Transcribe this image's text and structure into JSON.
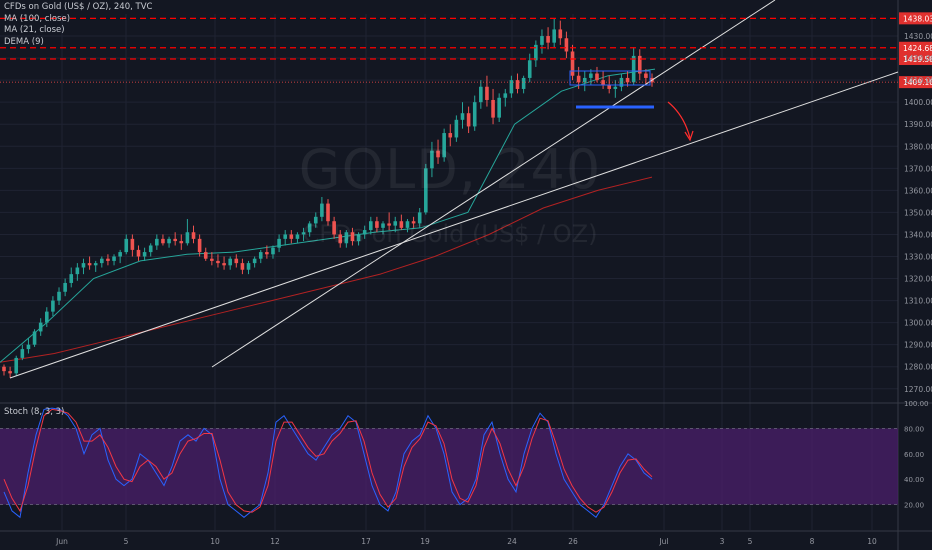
{
  "legend": {
    "title": "CFDs on Gold (US$ / OZ), 240, TVC",
    "ma100": "MA (100, close)",
    "ma21": "MA (21, close)",
    "dema": "DEMA (9)"
  },
  "watermark": {
    "symbol": "GOLD, 240",
    "name": "CFDs on Gold (US$ / OZ)"
  },
  "stoch_label": "Stoch (8, 3, 3)",
  "colors": {
    "background": "#131722",
    "up": "#26a69a",
    "down": "#ef5350",
    "resistance": "#ff0000",
    "stoch_k": "#2962ff",
    "stoch_d": "#f23645",
    "stoch_band": "#4b1f6b",
    "ma100": "#b22222",
    "ma21": "#26a69a"
  },
  "chart_data": [
    {
      "type": "candlestick",
      "price_axis": {
        "ticks": [
          "1430.00",
          "1420.00",
          "1410.00",
          "1400.00",
          "1390.00",
          "1380.00",
          "1370.00",
          "1360.00",
          "1350.00",
          "1340.00",
          "1330.00",
          "1320.00",
          "1310.00",
          "1300.00",
          "1290.00",
          "1280.00",
          "1270.00"
        ],
        "range": [
          1264,
          1440
        ]
      },
      "time_axis": {
        "ticks": [
          "Jun",
          "5",
          "10",
          "12",
          "17",
          "19",
          "24",
          "26",
          "Jul",
          "3",
          "5",
          "8",
          "10"
        ]
      },
      "price_labels": [
        {
          "value": "1438.03",
          "style": "resistance"
        },
        {
          "value": "1424.68",
          "style": "resistance"
        },
        {
          "value": "1419.58",
          "style": "resistance"
        },
        {
          "value": "1409.10",
          "style": "last"
        }
      ],
      "ohlc": [
        [
          1280,
          1281,
          1276,
          1278
        ],
        [
          1278,
          1280,
          1275,
          1277
        ],
        [
          1277,
          1285,
          1276,
          1284
        ],
        [
          1284,
          1290,
          1283,
          1288
        ],
        [
          1288,
          1293,
          1286,
          1290
        ],
        [
          1290,
          1297,
          1289,
          1296
        ],
        [
          1296,
          1302,
          1294,
          1300
        ],
        [
          1300,
          1307,
          1298,
          1305
        ],
        [
          1305,
          1312,
          1303,
          1310
        ],
        [
          1310,
          1316,
          1308,
          1314
        ],
        [
          1314,
          1320,
          1312,
          1318
        ],
        [
          1318,
          1325,
          1316,
          1322
        ],
        [
          1322,
          1327,
          1319,
          1325
        ],
        [
          1325,
          1329,
          1322,
          1327
        ],
        [
          1327,
          1330,
          1324,
          1326
        ],
        [
          1326,
          1328,
          1323,
          1327
        ],
        [
          1327,
          1330,
          1325,
          1329
        ],
        [
          1329,
          1331,
          1326,
          1328
        ],
        [
          1328,
          1331,
          1326,
          1330
        ],
        [
          1330,
          1333,
          1327,
          1332
        ],
        [
          1332,
          1340,
          1331,
          1338
        ],
        [
          1338,
          1340,
          1330,
          1333
        ],
        [
          1333,
          1335,
          1328,
          1330
        ],
        [
          1330,
          1334,
          1328,
          1332
        ],
        [
          1332,
          1336,
          1330,
          1335
        ],
        [
          1335,
          1340,
          1333,
          1338
        ],
        [
          1338,
          1340,
          1335,
          1336
        ],
        [
          1336,
          1339,
          1334,
          1338
        ],
        [
          1338,
          1341,
          1335,
          1337
        ],
        [
          1337,
          1340,
          1333,
          1336
        ],
        [
          1336,
          1347,
          1335,
          1341
        ],
        [
          1341,
          1344,
          1336,
          1338
        ],
        [
          1338,
          1340,
          1330,
          1332
        ],
        [
          1332,
          1334,
          1328,
          1329
        ],
        [
          1329,
          1332,
          1326,
          1328
        ],
        [
          1328,
          1331,
          1325,
          1327
        ],
        [
          1327,
          1330,
          1324,
          1326
        ],
        [
          1326,
          1330,
          1324,
          1329
        ],
        [
          1329,
          1331,
          1325,
          1327
        ],
        [
          1327,
          1329,
          1322,
          1324
        ],
        [
          1324,
          1328,
          1322,
          1327
        ],
        [
          1327,
          1330,
          1325,
          1329
        ],
        [
          1329,
          1333,
          1327,
          1332
        ],
        [
          1332,
          1335,
          1329,
          1331
        ],
        [
          1331,
          1335,
          1329,
          1334
        ],
        [
          1334,
          1340,
          1332,
          1338
        ],
        [
          1338,
          1342,
          1335,
          1340
        ],
        [
          1340,
          1342,
          1336,
          1338
        ],
        [
          1338,
          1341,
          1336,
          1340
        ],
        [
          1340,
          1343,
          1337,
          1341
        ],
        [
          1341,
          1346,
          1339,
          1345
        ],
        [
          1345,
          1350,
          1343,
          1348
        ],
        [
          1348,
          1357,
          1346,
          1354
        ],
        [
          1354,
          1356,
          1344,
          1346
        ],
        [
          1346,
          1348,
          1338,
          1340
        ],
        [
          1340,
          1342,
          1334,
          1336
        ],
        [
          1336,
          1342,
          1334,
          1341
        ],
        [
          1341,
          1343,
          1335,
          1337
        ],
        [
          1337,
          1341,
          1335,
          1340
        ],
        [
          1340,
          1344,
          1338,
          1342
        ],
        [
          1342,
          1348,
          1340,
          1346
        ],
        [
          1346,
          1348,
          1341,
          1343
        ],
        [
          1343,
          1346,
          1340,
          1345
        ],
        [
          1345,
          1350,
          1342,
          1344
        ],
        [
          1344,
          1348,
          1341,
          1346
        ],
        [
          1346,
          1349,
          1342,
          1343
        ],
        [
          1343,
          1347,
          1341,
          1346
        ],
        [
          1346,
          1348,
          1343,
          1345
        ],
        [
          1345,
          1352,
          1343,
          1350
        ],
        [
          1350,
          1372,
          1349,
          1370
        ],
        [
          1370,
          1382,
          1366,
          1378
        ],
        [
          1378,
          1383,
          1372,
          1375
        ],
        [
          1375,
          1388,
          1373,
          1386
        ],
        [
          1386,
          1390,
          1380,
          1384
        ],
        [
          1384,
          1394,
          1382,
          1392
        ],
        [
          1392,
          1400,
          1388,
          1395
        ],
        [
          1395,
          1398,
          1386,
          1389
        ],
        [
          1389,
          1403,
          1387,
          1400
        ],
        [
          1400,
          1410,
          1397,
          1407
        ],
        [
          1407,
          1412,
          1398,
          1401
        ],
        [
          1401,
          1406,
          1390,
          1393
        ],
        [
          1393,
          1404,
          1391,
          1402
        ],
        [
          1402,
          1406,
          1398,
          1404
        ],
        [
          1404,
          1412,
          1402,
          1410
        ],
        [
          1410,
          1413,
          1404,
          1406
        ],
        [
          1406,
          1412,
          1404,
          1411
        ],
        [
          1411,
          1422,
          1409,
          1419
        ],
        [
          1419,
          1428,
          1416,
          1426
        ],
        [
          1426,
          1433,
          1422,
          1430
        ],
        [
          1430,
          1434,
          1424,
          1427
        ],
        [
          1427,
          1438,
          1425,
          1433
        ],
        [
          1433,
          1437,
          1426,
          1429
        ],
        [
          1429,
          1432,
          1420,
          1423
        ],
        [
          1423,
          1426,
          1410,
          1412
        ],
        [
          1412,
          1416,
          1406,
          1409
        ],
        [
          1409,
          1414,
          1405,
          1411
        ],
        [
          1411,
          1415,
          1408,
          1413
        ],
        [
          1413,
          1416,
          1409,
          1410
        ],
        [
          1410,
          1414,
          1406,
          1408
        ],
        [
          1408,
          1412,
          1404,
          1406
        ],
        [
          1406,
          1410,
          1402,
          1407
        ],
        [
          1407,
          1413,
          1405,
          1411
        ],
        [
          1411,
          1414,
          1407,
          1409
        ],
        [
          1409,
          1425,
          1408,
          1421
        ],
        [
          1421,
          1424,
          1410,
          1413
        ],
        [
          1413,
          1415,
          1408,
          1411
        ],
        [
          1411,
          1413,
          1407,
          1409
        ]
      ],
      "overlay_lines": {
        "ma100": [
          1282,
          1286,
          1292,
          1298,
          1304,
          1310,
          1316,
          1322,
          1330,
          1340,
          1352,
          1360,
          1366
        ],
        "ma21": [
          1282,
          1300,
          1320,
          1328,
          1331,
          1332,
          1335,
          1338,
          1341,
          1343,
          1350,
          1390,
          1405,
          1412,
          1415
        ]
      }
    },
    {
      "type": "line",
      "title": "Stoch (8, 3, 3)",
      "y_ticks": [
        "100.00",
        "80.00",
        "60.00",
        "40.00",
        "20.00"
      ],
      "ylim": [
        0,
        100
      ],
      "band": [
        20,
        80
      ],
      "series": [
        {
          "values": [
            30,
            15,
            10,
            45,
            75,
            95,
            96,
            95,
            90,
            80,
            60,
            75,
            80,
            55,
            40,
            35,
            40,
            60,
            55,
            45,
            35,
            50,
            70,
            75,
            70,
            80,
            75,
            40,
            20,
            15,
            10,
            15,
            20,
            45,
            85,
            90,
            80,
            70,
            60,
            55,
            65,
            75,
            80,
            90,
            85,
            60,
            35,
            20,
            15,
            30,
            60,
            70,
            75,
            90,
            80,
            60,
            30,
            20,
            25,
            40,
            75,
            85,
            60,
            40,
            30,
            60,
            80,
            92,
            85,
            60,
            40,
            30,
            20,
            15,
            10,
            20,
            35,
            50,
            60,
            55,
            45,
            40
          ]
        },
        {
          "values": [
            40,
            25,
            15,
            35,
            65,
            90,
            95,
            94,
            92,
            85,
            70,
            70,
            75,
            65,
            50,
            40,
            38,
            50,
            55,
            50,
            40,
            45,
            60,
            70,
            72,
            76,
            76,
            55,
            30,
            20,
            15,
            14,
            18,
            35,
            70,
            85,
            85,
            75,
            65,
            58,
            60,
            70,
            76,
            85,
            86,
            70,
            45,
            28,
            18,
            25,
            50,
            65,
            72,
            85,
            82,
            68,
            40,
            25,
            22,
            35,
            65,
            80,
            68,
            48,
            35,
            50,
            72,
            88,
            86,
            68,
            48,
            35,
            25,
            18,
            14,
            18,
            30,
            45,
            55,
            56,
            48,
            42
          ]
        }
      ]
    }
  ]
}
